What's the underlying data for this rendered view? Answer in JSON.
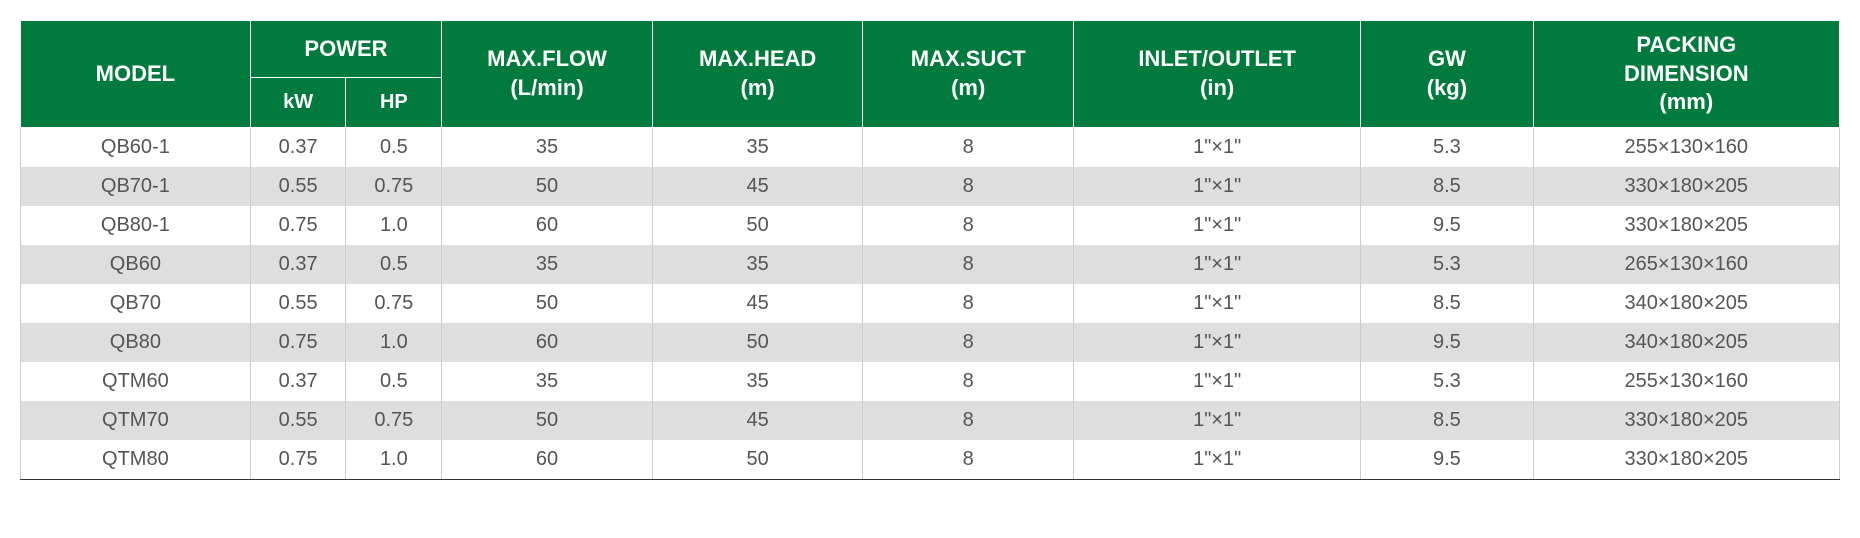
{
  "table": {
    "type": "table",
    "header_bg_color": "#007a3d",
    "header_text_color": "#ffffff",
    "row_odd_bg": "#ffffff",
    "row_even_bg": "#dedede",
    "cell_text_color": "#555555",
    "border_color": "#333333",
    "inner_border_color": "#cccccc",
    "header_fontsize": 22,
    "cell_fontsize": 20,
    "columns": {
      "model": "MODEL",
      "power": "POWER",
      "kw": "kW",
      "hp": "HP",
      "maxflow": "MAX.FLOW (L/min)",
      "maxhead": "MAX.HEAD (m)",
      "maxsuct": "MAX.SUCT (m)",
      "inletoutlet": "INLET/OUTLET (in)",
      "gw": "GW (kg)",
      "packing": "PACKING DIMENSION (mm)"
    },
    "column_widths": {
      "model": "12%",
      "kw": "5%",
      "hp": "5%",
      "flow": "11%",
      "head": "11%",
      "suct": "11%",
      "inlet": "15%",
      "gw": "9%",
      "packing": "16%"
    },
    "rows": [
      {
        "model": "QB60-1",
        "kw": "0.37",
        "hp": "0.5",
        "flow": "35",
        "head": "35",
        "suct": "8",
        "inlet": "1\"×1\"",
        "gw": "5.3",
        "packing": "255×130×160"
      },
      {
        "model": "QB70-1",
        "kw": "0.55",
        "hp": "0.75",
        "flow": "50",
        "head": "45",
        "suct": "8",
        "inlet": "1\"×1\"",
        "gw": "8.5",
        "packing": "330×180×205"
      },
      {
        "model": "QB80-1",
        "kw": "0.75",
        "hp": "1.0",
        "flow": "60",
        "head": "50",
        "suct": "8",
        "inlet": "1\"×1\"",
        "gw": "9.5",
        "packing": "330×180×205"
      },
      {
        "model": "QB60",
        "kw": "0.37",
        "hp": "0.5",
        "flow": "35",
        "head": "35",
        "suct": "8",
        "inlet": "1\"×1\"",
        "gw": "5.3",
        "packing": "265×130×160"
      },
      {
        "model": "QB70",
        "kw": "0.55",
        "hp": "0.75",
        "flow": "50",
        "head": "45",
        "suct": "8",
        "inlet": "1\"×1\"",
        "gw": "8.5",
        "packing": "340×180×205"
      },
      {
        "model": "QB80",
        "kw": "0.75",
        "hp": "1.0",
        "flow": "60",
        "head": "50",
        "suct": "8",
        "inlet": "1\"×1\"",
        "gw": "9.5",
        "packing": "340×180×205"
      },
      {
        "model": "QTM60",
        "kw": "0.37",
        "hp": "0.5",
        "flow": "35",
        "head": "35",
        "suct": "8",
        "inlet": "1\"×1\"",
        "gw": "5.3",
        "packing": "255×130×160"
      },
      {
        "model": "QTM70",
        "kw": "0.55",
        "hp": "0.75",
        "flow": "50",
        "head": "45",
        "suct": "8",
        "inlet": "1\"×1\"",
        "gw": "8.5",
        "packing": "330×180×205"
      },
      {
        "model": "QTM80",
        "kw": "0.75",
        "hp": "1.0",
        "flow": "60",
        "head": "50",
        "suct": "8",
        "inlet": "1\"×1\"",
        "gw": "9.5",
        "packing": "330×180×205"
      }
    ]
  }
}
